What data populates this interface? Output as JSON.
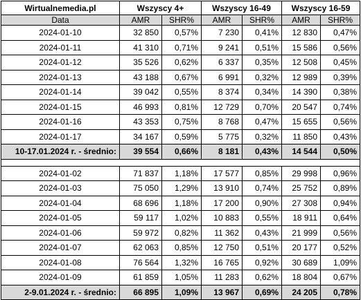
{
  "header": {
    "site": "Wirtualnemedia.pl",
    "groups": [
      "Wszyscy 4+",
      "Wszyscy 16-49",
      "Wszyscy 16-59"
    ],
    "date_label": "Data",
    "metrics": [
      "AMR",
      "SHR%",
      "AMR",
      "SHR%",
      "AMR",
      "SHR%"
    ]
  },
  "sections": [
    {
      "rows": [
        [
          "2024-01-10",
          "32 850",
          "0,57%",
          "7 230",
          "0,41%",
          "12 830",
          "0,47%"
        ],
        [
          "2024-01-11",
          "41 310",
          "0,71%",
          "9 241",
          "0,51%",
          "15 586",
          "0,56%"
        ],
        [
          "2024-01-12",
          "35 526",
          "0,62%",
          "6 337",
          "0,35%",
          "12 508",
          "0,45%"
        ],
        [
          "2024-01-13",
          "43 188",
          "0,67%",
          "6 991",
          "0,32%",
          "12 989",
          "0,39%"
        ],
        [
          "2024-01-14",
          "39 042",
          "0,55%",
          "8 374",
          "0,34%",
          "14 390",
          "0,38%"
        ],
        [
          "2024-01-15",
          "46 993",
          "0,81%",
          "12 729",
          "0,70%",
          "20 547",
          "0,74%"
        ],
        [
          "2024-01-16",
          "43 353",
          "0,75%",
          "8 768",
          "0,47%",
          "15 655",
          "0,56%"
        ],
        [
          "2024-01-17",
          "34 167",
          "0,59%",
          "5 775",
          "0,32%",
          "11 850",
          "0,43%"
        ]
      ],
      "summary": [
        "10-17.01.2024 r. - średnio:",
        "39 554",
        "0,66%",
        "8 181",
        "0,43%",
        "14 544",
        "0,50%"
      ]
    },
    {
      "rows": [
        [
          "2024-01-02",
          "71 837",
          "1,18%",
          "17 577",
          "0,85%",
          "29 998",
          "0,96%"
        ],
        [
          "2024-01-03",
          "75 050",
          "1,29%",
          "13 910",
          "0,74%",
          "25 752",
          "0,89%"
        ],
        [
          "2024-01-04",
          "68 696",
          "1,18%",
          "17 200",
          "0,90%",
          "27 308",
          "0,94%"
        ],
        [
          "2024-01-05",
          "59 117",
          "1,02%",
          "10 883",
          "0,55%",
          "18 911",
          "0,64%"
        ],
        [
          "2024-01-06",
          "59 972",
          "0,82%",
          "11 362",
          "0,43%",
          "21 999",
          "0,56%"
        ],
        [
          "2024-01-07",
          "62 063",
          "0,85%",
          "12 750",
          "0,51%",
          "20 177",
          "0,52%"
        ],
        [
          "2024-01-08",
          "76 564",
          "1,32%",
          "16 765",
          "0,92%",
          "30 689",
          "1,09%"
        ],
        [
          "2024-01-09",
          "61 859",
          "1,05%",
          "11 283",
          "0,62%",
          "18 804",
          "0,67%"
        ]
      ],
      "summary": [
        "2-9.01.2024 r. - średnio:",
        "66 895",
        "1,09%",
        "13 967",
        "0,69%",
        "24 205",
        "0,78%"
      ]
    }
  ]
}
